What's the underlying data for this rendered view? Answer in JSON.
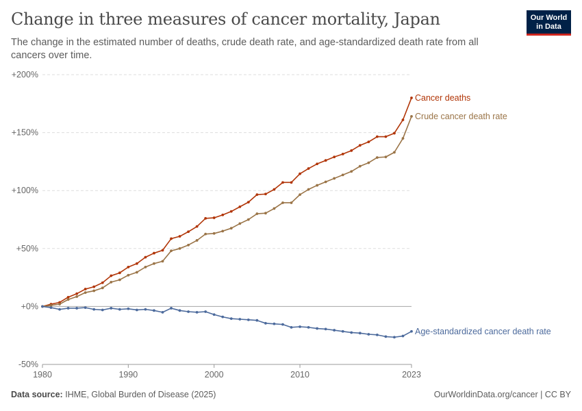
{
  "header": {
    "title": "Change in three measures of cancer mortality, Japan",
    "subtitle": "The change in the estimated number of deaths, crude death rate, and age-standardized death rate from all cancers over time.",
    "logo_line1": "Our World",
    "logo_line2": "in Data"
  },
  "footer": {
    "source_label": "Data source:",
    "source_text": "IHME, Global Burden of Disease (2025)",
    "credit": "OurWorldinData.org/cancer | CC BY"
  },
  "chart_data": {
    "type": "line",
    "x": [
      1980,
      1981,
      1982,
      1983,
      1984,
      1985,
      1986,
      1987,
      1988,
      1989,
      1990,
      1991,
      1992,
      1993,
      1994,
      1995,
      1996,
      1997,
      1998,
      1999,
      2000,
      2001,
      2002,
      2003,
      2004,
      2005,
      2006,
      2007,
      2008,
      2009,
      2010,
      2011,
      2012,
      2013,
      2014,
      2015,
      2016,
      2017,
      2018,
      2019,
      2020,
      2021,
      2022,
      2023
    ],
    "series": [
      {
        "name": "Cancer deaths",
        "color": "#b13507",
        "values": [
          0,
          2,
          3.5,
          8,
          11,
          15,
          17,
          20.5,
          26.5,
          29,
          34,
          37,
          42.5,
          46,
          48.5,
          58.5,
          60.5,
          64.5,
          69,
          76,
          76.5,
          79,
          82,
          86,
          90,
          96.5,
          97,
          101,
          107,
          107,
          114.5,
          119,
          123,
          126,
          129,
          131.5,
          134.5,
          139,
          142,
          146.5,
          146.5,
          149.5,
          161,
          180
        ]
      },
      {
        "name": "Crude cancer death rate",
        "color": "#9a7447",
        "values": [
          0,
          1,
          2,
          6,
          8.5,
          12,
          13.5,
          16,
          21,
          23,
          27,
          29.5,
          34,
          37,
          39,
          48,
          50,
          53,
          57,
          62.5,
          63,
          65,
          67.5,
          71.5,
          75,
          80,
          80.5,
          84.5,
          89.5,
          89.5,
          96.5,
          101,
          104.5,
          107.5,
          110.5,
          113.5,
          116.5,
          121,
          124,
          128.5,
          129,
          133,
          145,
          164
        ]
      },
      {
        "name": "Age-standardized cancer death rate",
        "color": "#4c6a9c",
        "values": [
          0,
          -1,
          -2.5,
          -1.5,
          -1.5,
          -1,
          -2.5,
          -3,
          -1.5,
          -2.5,
          -2,
          -3,
          -2.5,
          -3.5,
          -5,
          -1.5,
          -3.5,
          -4.5,
          -5,
          -4.5,
          -7,
          -9,
          -10.5,
          -11,
          -11.5,
          -12,
          -14.5,
          -15,
          -15.5,
          -18,
          -17.5,
          -18,
          -19,
          -19.5,
          -20.5,
          -21.5,
          -22.5,
          -23,
          -24,
          -24.5,
          -26,
          -26.5,
          -25.5,
          -21.5
        ]
      }
    ],
    "y_ticks": [
      "+200%",
      "+150%",
      "+100%",
      "+50%",
      "+0%",
      "-50%"
    ],
    "y_tick_values": [
      200,
      150,
      100,
      50,
      0,
      -50
    ],
    "x_ticks": [
      "1980",
      "1990",
      "2000",
      "2010",
      "2023"
    ],
    "x_tick_values": [
      1980,
      1990,
      2000,
      2010,
      2023
    ],
    "ylim": [
      -50,
      200
    ],
    "xlim": [
      1980,
      2023
    ],
    "grid": "horizontal dashed",
    "legend": "inline labels at line ends"
  }
}
